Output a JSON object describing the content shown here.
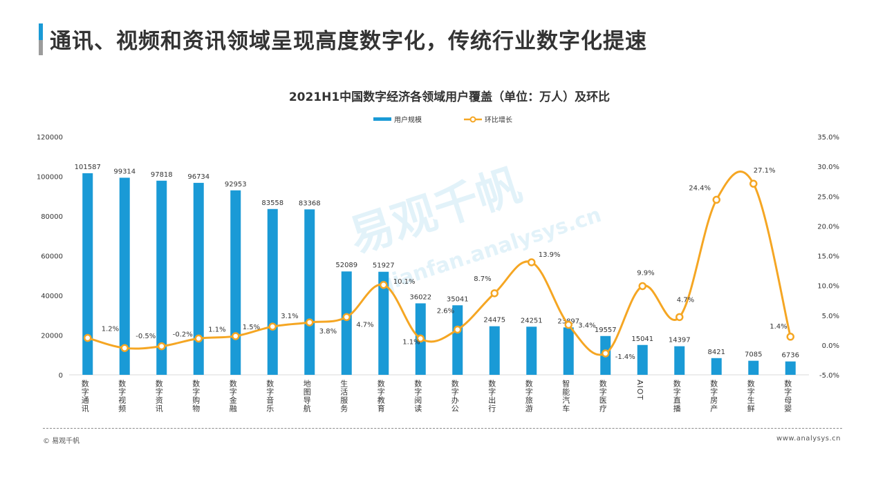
{
  "page": {
    "title": "通讯、视频和资讯领域呈现高度数字化，传统行业数字化提速",
    "footer_left": "© 易观千帆",
    "footer_right": "www.analysys.cn",
    "watermark": "易观千帆",
    "watermark_sub": "qianfan.analysys.cn"
  },
  "colors": {
    "bar": "#1a9ad6",
    "line": "#f5a623",
    "text": "#333333"
  },
  "chart_data": {
    "type": "bar+line",
    "title": "2021H1中国数字经济各领域用户覆盖（单位：万人）及环比",
    "legend": [
      "用户规模",
      "环比增长"
    ],
    "categories": [
      "数字通讯",
      "数字视频",
      "数字资讯",
      "数字购物",
      "数字金融",
      "数字音乐",
      "地图导航",
      "生活服务",
      "数字教育",
      "数字阅读",
      "数字办公",
      "数字出行",
      "数字旅游",
      "智能汽车",
      "数字医疗",
      "AIOT",
      "数字直播",
      "数字房产",
      "数字生鲜",
      "数字母婴"
    ],
    "bar_values": [
      101587,
      99314,
      97818,
      96734,
      92953,
      83558,
      83368,
      52089,
      51927,
      36022,
      35041,
      24475,
      24251,
      23897,
      19557,
      15041,
      14397,
      8421,
      7085,
      6736
    ],
    "line_values": [
      1.2,
      -0.5,
      -0.2,
      1.1,
      1.5,
      3.1,
      3.8,
      4.7,
      10.1,
      1.1,
      2.6,
      8.7,
      13.9,
      3.4,
      -1.4,
      9.9,
      4.7,
      24.4,
      27.1,
      1.4
    ],
    "line_labels": [
      "1.2%",
      "-0.5%",
      "-0.2%",
      "1.1%",
      "1.5%",
      "3.1%",
      "3.8%",
      "4.7%",
      "10.1%",
      "1.1%",
      "2.6%",
      "8.7%",
      "13.9%",
      "3.4%",
      "-1.4%",
      "9.9%",
      "4.7%",
      "24.4%",
      "27.1%",
      "1.4%"
    ],
    "y_left": {
      "min": 0,
      "max": 120000,
      "ticks": [
        "0",
        "20000",
        "40000",
        "60000",
        "80000",
        "100000",
        "120000"
      ]
    },
    "y_right": {
      "min": -5,
      "max": 35,
      "ticks": [
        "-5.0%",
        "0.0%",
        "5.0%",
        "10.0%",
        "15.0%",
        "20.0%",
        "25.0%",
        "30.0%",
        "35.0%"
      ]
    }
  }
}
